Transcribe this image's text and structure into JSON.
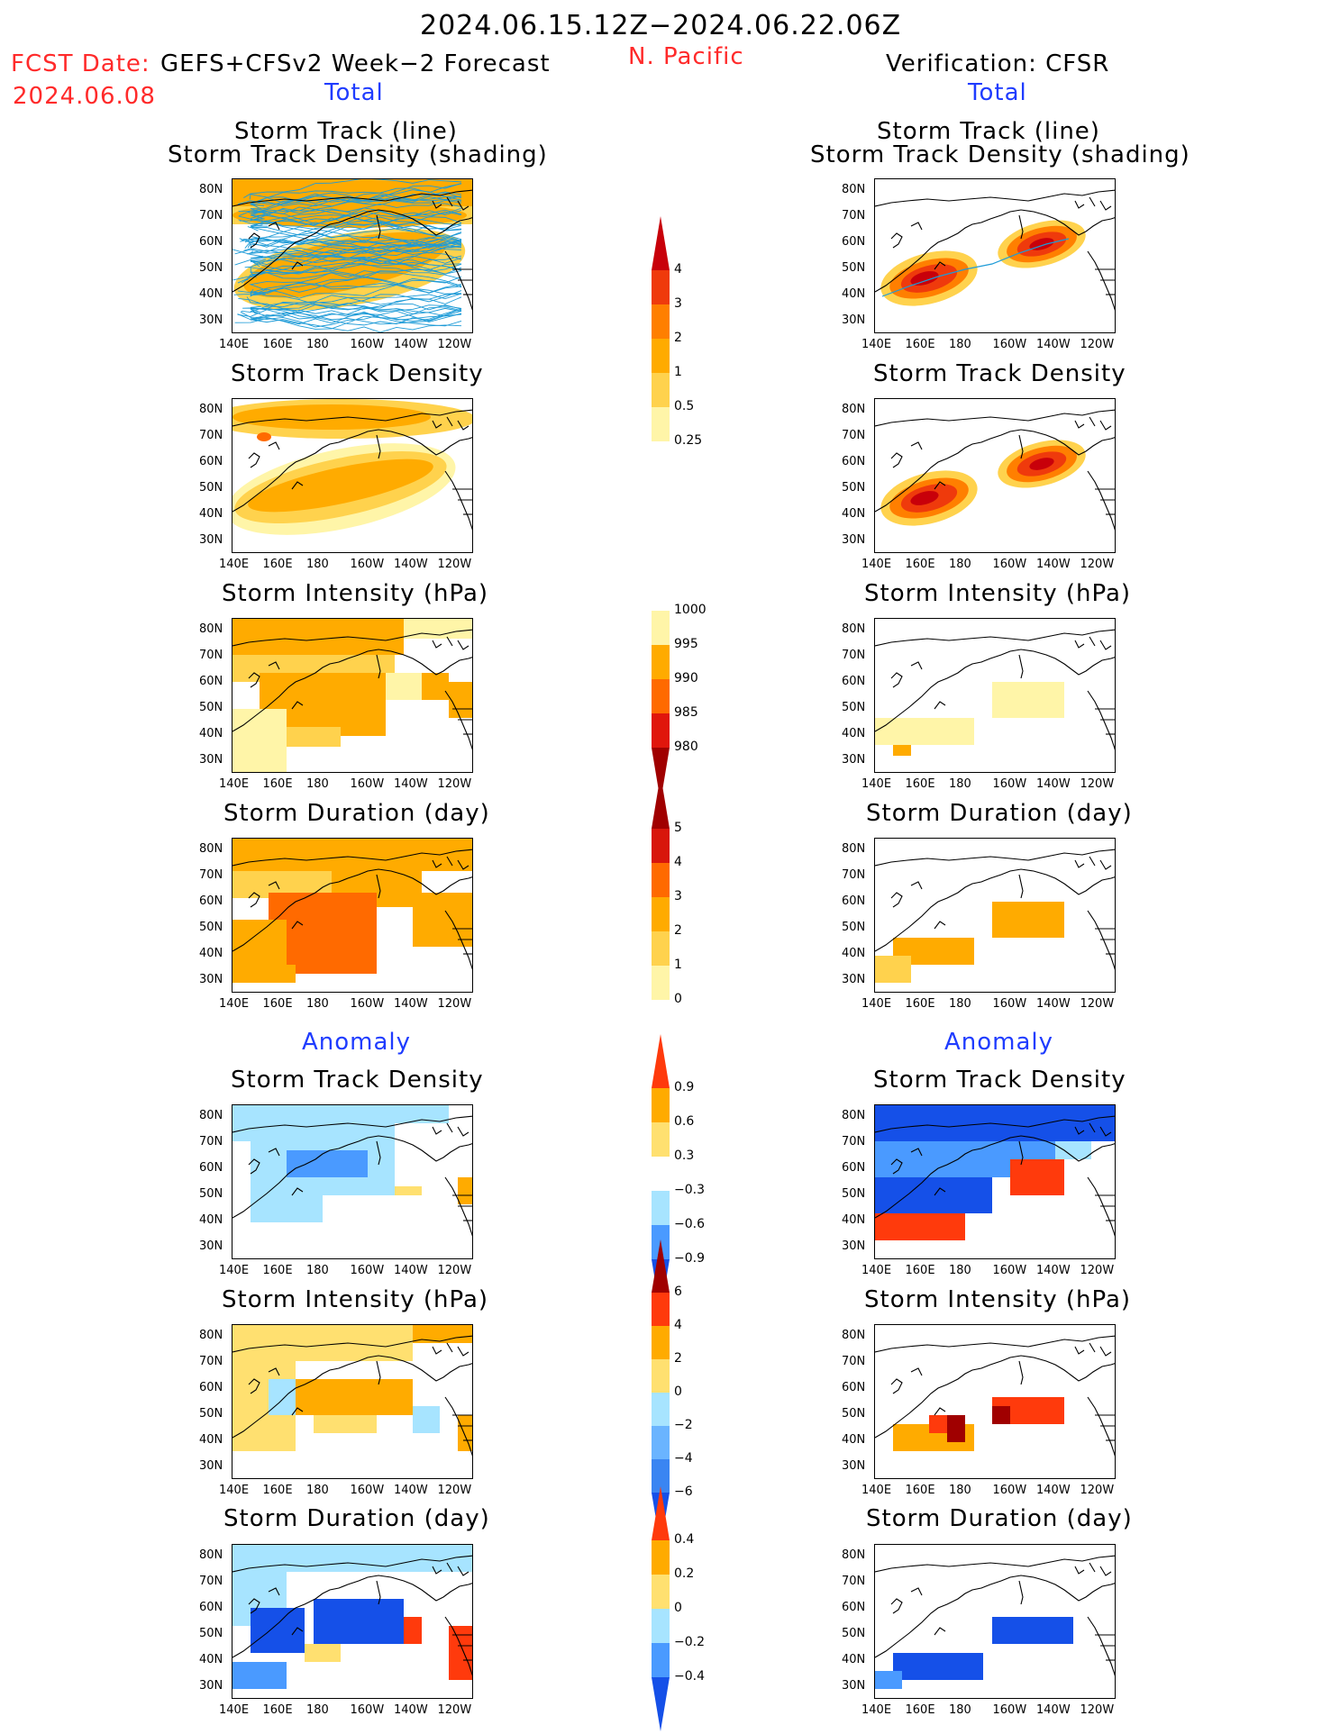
{
  "header": {
    "date_range": "2024.06.15.12Z−2024.06.22.06Z",
    "fcst_label": "FCST Date:",
    "forecast_system": "GEFS+CFSv2 Week−2 Forecast",
    "fcst_date": "2024.06.08",
    "region": "N. Pacific",
    "verification": "Verification: CFSR"
  },
  "sections": {
    "total": "Total",
    "anomaly": "Anomaly"
  },
  "panel_titles": {
    "track_line": "Storm Track (line)",
    "track_density_shading": "Storm Track Density (shading)",
    "track_density": "Storm Track Density",
    "intensity": "Storm Intensity (hPa)",
    "duration": "Storm Duration (day)"
  },
  "axes": {
    "lat_ticks": [
      "80N",
      "70N",
      "60N",
      "50N",
      "40N",
      "30N"
    ],
    "lon_ticks": [
      "140E",
      "160E",
      "180",
      "160W",
      "140W",
      "120W"
    ]
  },
  "colorbars": {
    "density": {
      "labels": [
        "4",
        "3",
        "2",
        "1",
        "0.5",
        "0.25"
      ],
      "colors": [
        "#c8000a",
        "#ef3a0c",
        "#ff7f00",
        "#ffab00",
        "#ffd24d",
        "#fff5a8",
        "#ffffff"
      ]
    },
    "intensity": {
      "labels": [
        "1000",
        "995",
        "990",
        "985",
        "980"
      ],
      "colors": [
        "#ffffff",
        "#fff5a8",
        "#ffab00",
        "#ff6a00",
        "#e0160c",
        "#a00000"
      ]
    },
    "duration": {
      "labels": [
        "5",
        "4",
        "3",
        "2",
        "1",
        "0"
      ],
      "colors": [
        "#a00000",
        "#d8160c",
        "#ff6a00",
        "#ffab00",
        "#ffd24d",
        "#fff5a8",
        "#ffffff"
      ]
    },
    "density_anom": {
      "labels": [
        "0.9",
        "0.6",
        "0.3",
        "−0.3",
        "−0.6",
        "−0.9"
      ],
      "colors": [
        "#ff3a0c",
        "#ffab00",
        "#ffe070",
        "#ffffff",
        "#a7e4ff",
        "#4a9aff",
        "#1550e8"
      ]
    },
    "intensity_anom": {
      "labels": [
        "6",
        "4",
        "2",
        "0",
        "−2",
        "−4",
        "−6"
      ],
      "colors": [
        "#a00000",
        "#ff3a0c",
        "#ffab00",
        "#ffe070",
        "#a7e4ff",
        "#6ab4ff",
        "#3a85f2",
        "#1550e8"
      ]
    },
    "duration_anom": {
      "labels": [
        "0.4",
        "0.2",
        "0",
        "−0.2",
        "−0.4"
      ],
      "colors": [
        "#ff3a0c",
        "#ffab00",
        "#ffe070",
        "#a7e4ff",
        "#4a9aff",
        "#1550e8"
      ]
    }
  }
}
